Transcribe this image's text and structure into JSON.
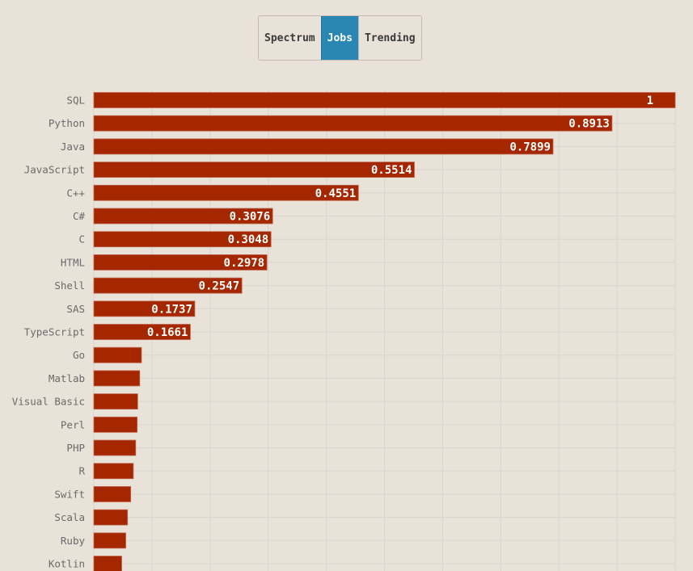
{
  "toggle": {
    "options": [
      "Spectrum",
      "Jobs",
      "Trending"
    ],
    "selected": "Jobs",
    "active_color": "#2a87b4"
  },
  "chart_data": {
    "type": "bar",
    "orientation": "horizontal",
    "bar_color": "#a42700",
    "xlim": [
      0,
      1
    ],
    "grid": true,
    "categories": [
      "SQL",
      "Python",
      "Java",
      "JavaScript",
      "C++",
      "C#",
      "C",
      "HTML",
      "Shell",
      "SAS",
      "TypeScript",
      "Go",
      "Matlab",
      "Visual Basic",
      "Perl",
      "PHP",
      "R",
      "Swift",
      "Scala",
      "Ruby",
      "Kotlin"
    ],
    "values": [
      1,
      0.8913,
      0.7899,
      0.5514,
      0.4551,
      0.3076,
      0.3048,
      0.2978,
      0.2547,
      0.1737,
      0.1661,
      0.082,
      0.079,
      0.0755,
      0.0746,
      0.072,
      0.068,
      0.0635,
      0.058,
      0.055,
      0.048
    ],
    "data_labels": [
      "1",
      "0.8913",
      "0.7899",
      "0.5514",
      "0.4551",
      "0.3076",
      "0.3048",
      "0.2978",
      "0.2547",
      "0.1737",
      "0.1661",
      "",
      "",
      "",
      "",
      "",
      "",
      "",
      "",
      "",
      ""
    ]
  }
}
